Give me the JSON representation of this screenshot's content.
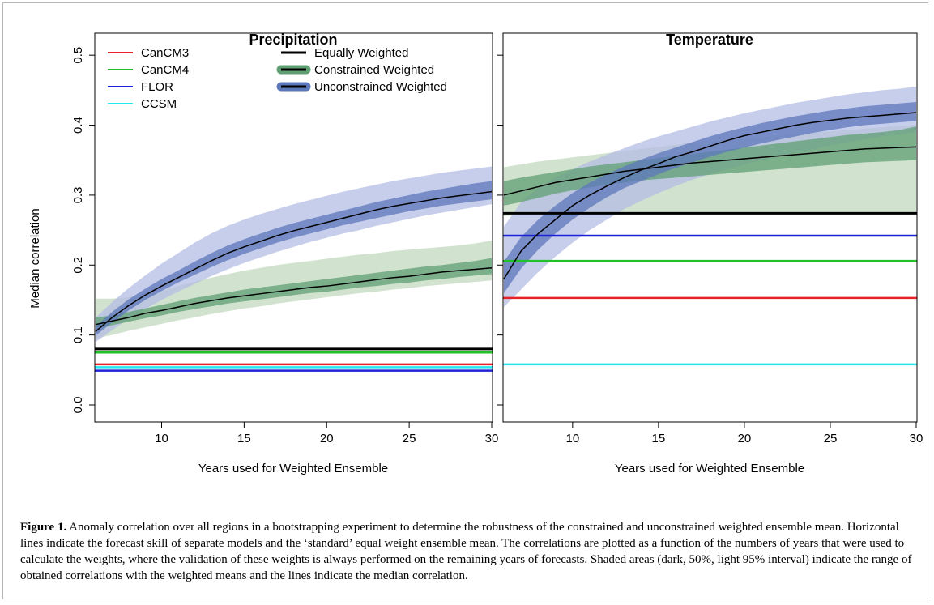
{
  "caption": {
    "label": "Figure 1.",
    "text": "Anomaly correlation over all regions in a bootstrapping experiment to determine the robustness of the constrained and unconstrained weighted ensemble mean. Horizontal lines indicate the forecast skill of separate models and the ‘standard’ equal weight ensemble mean. The correlations are plotted as a function of the numbers of years that were used to calculate the weights, where the validation of these weights is always performed on the remaining years of forecasts. Shaded areas (dark, 50%, light 95% interval) indicate the range of obtained correlations with the weighted means and the lines indicate the median correlation."
  },
  "colors": {
    "CanCM3": "#e8202a",
    "CanCM4": "#22c02a",
    "FLOR": "#1f22d6",
    "CCSM": "#22e8f0",
    "equal": "#000000",
    "constrained_light": "#c2d8bd",
    "constrained_dark": "#5f9f73",
    "unconstrained_light": "#b4bde4",
    "unconstrained_dark": "#5d77bb"
  },
  "chart_data": [
    {
      "type": "line",
      "title": "Precipitation",
      "xlabel": "Years used for Weighted Ensemble",
      "ylabel": "Median correlation",
      "xlim": [
        6,
        30
      ],
      "ylim": [
        0,
        0.55
      ],
      "xticks": [
        "10",
        "15",
        "20",
        "25",
        "30"
      ],
      "yticks": [
        "0.0",
        "0.1",
        "0.2",
        "0.3",
        "0.4",
        "0.5"
      ],
      "legend": {
        "placement": "top-left",
        "col1": [
          "CanCM3",
          "CanCM4",
          "FLOR",
          "CCSM"
        ],
        "col2": [
          "Equally Weighted",
          "Constrained Weighted",
          "Unconstrained Weighted"
        ]
      },
      "hlines": [
        {
          "name": "CanCM3",
          "value": 0.058
        },
        {
          "name": "CanCM4",
          "value": 0.075
        },
        {
          "name": "FLOR",
          "value": 0.049
        },
        {
          "name": "CCSM",
          "value": 0.054
        },
        {
          "name": "Equally Weighted",
          "value": 0.08
        }
      ],
      "x": [
        6,
        7,
        8,
        9,
        10,
        11,
        12,
        13,
        14,
        15,
        16,
        17,
        18,
        19,
        20,
        21,
        22,
        23,
        24,
        25,
        26,
        27,
        28,
        29,
        30
      ],
      "series": [
        {
          "name": "Constrained Weighted",
          "median": [
            0.115,
            0.12,
            0.125,
            0.131,
            0.135,
            0.14,
            0.145,
            0.149,
            0.153,
            0.156,
            0.159,
            0.162,
            0.165,
            0.168,
            0.17,
            0.173,
            0.176,
            0.179,
            0.182,
            0.184,
            0.187,
            0.19,
            0.192,
            0.194,
            0.196
          ],
          "p25": [
            0.108,
            0.114,
            0.119,
            0.124,
            0.128,
            0.133,
            0.137,
            0.141,
            0.145,
            0.148,
            0.151,
            0.154,
            0.157,
            0.16,
            0.162,
            0.165,
            0.168,
            0.17,
            0.173,
            0.175,
            0.178,
            0.18,
            0.183,
            0.185,
            0.187
          ],
          "p75": [
            0.125,
            0.128,
            0.133,
            0.138,
            0.143,
            0.148,
            0.153,
            0.157,
            0.161,
            0.165,
            0.168,
            0.171,
            0.174,
            0.177,
            0.18,
            0.183,
            0.186,
            0.189,
            0.192,
            0.195,
            0.198,
            0.2,
            0.203,
            0.206,
            0.21
          ],
          "p025": [
            0.095,
            0.1,
            0.106,
            0.111,
            0.116,
            0.121,
            0.125,
            0.13,
            0.134,
            0.138,
            0.141,
            0.145,
            0.148,
            0.151,
            0.154,
            0.157,
            0.16,
            0.162,
            0.165,
            0.167,
            0.17,
            0.172,
            0.174,
            0.176,
            0.178
          ],
          "p975": [
            0.152,
            0.152,
            0.154,
            0.158,
            0.163,
            0.17,
            0.176,
            0.182,
            0.187,
            0.192,
            0.196,
            0.2,
            0.203,
            0.206,
            0.209,
            0.212,
            0.215,
            0.217,
            0.22,
            0.222,
            0.224,
            0.226,
            0.228,
            0.231,
            0.235
          ]
        },
        {
          "name": "Unconstrained Weighted",
          "median": [
            0.105,
            0.125,
            0.142,
            0.157,
            0.17,
            0.182,
            0.194,
            0.206,
            0.217,
            0.226,
            0.234,
            0.242,
            0.249,
            0.255,
            0.261,
            0.267,
            0.273,
            0.279,
            0.284,
            0.288,
            0.292,
            0.296,
            0.299,
            0.302,
            0.305
          ],
          "p25": [
            0.099,
            0.118,
            0.135,
            0.15,
            0.163,
            0.175,
            0.186,
            0.197,
            0.207,
            0.216,
            0.224,
            0.232,
            0.239,
            0.245,
            0.251,
            0.257,
            0.262,
            0.267,
            0.272,
            0.277,
            0.281,
            0.285,
            0.288,
            0.291,
            0.294
          ],
          "p75": [
            0.112,
            0.133,
            0.151,
            0.166,
            0.18,
            0.192,
            0.205,
            0.217,
            0.228,
            0.237,
            0.245,
            0.253,
            0.26,
            0.266,
            0.272,
            0.278,
            0.284,
            0.29,
            0.295,
            0.3,
            0.305,
            0.309,
            0.313,
            0.317,
            0.32
          ],
          "p025": [
            0.09,
            0.107,
            0.123,
            0.137,
            0.15,
            0.162,
            0.173,
            0.184,
            0.194,
            0.203,
            0.211,
            0.219,
            0.226,
            0.233,
            0.239,
            0.245,
            0.25,
            0.256,
            0.261,
            0.266,
            0.271,
            0.275,
            0.279,
            0.283,
            0.287
          ],
          "p975": [
            0.125,
            0.147,
            0.167,
            0.185,
            0.202,
            0.217,
            0.232,
            0.245,
            0.256,
            0.265,
            0.273,
            0.28,
            0.287,
            0.293,
            0.299,
            0.305,
            0.31,
            0.315,
            0.32,
            0.324,
            0.328,
            0.332,
            0.335,
            0.338,
            0.341
          ]
        }
      ]
    },
    {
      "type": "line",
      "title": "Temperature",
      "xlabel": "Years used for Weighted Ensemble",
      "ylabel": "",
      "xlim": [
        6,
        30
      ],
      "ylim": [
        0,
        0.55
      ],
      "xticks": [
        "10",
        "15",
        "20",
        "25",
        "30"
      ],
      "hlines": [
        {
          "name": "CanCM3",
          "value": 0.153
        },
        {
          "name": "CanCM4",
          "value": 0.206
        },
        {
          "name": "FLOR",
          "value": 0.242
        },
        {
          "name": "CCSM",
          "value": 0.058
        },
        {
          "name": "Equally Weighted",
          "value": 0.274
        }
      ],
      "x": [
        6,
        7,
        8,
        9,
        10,
        11,
        12,
        13,
        14,
        15,
        16,
        17,
        18,
        19,
        20,
        21,
        22,
        23,
        24,
        25,
        26,
        27,
        28,
        29,
        30
      ],
      "series": [
        {
          "name": "Constrained Weighted",
          "median": [
            0.3,
            0.306,
            0.312,
            0.318,
            0.322,
            0.326,
            0.33,
            0.334,
            0.337,
            0.34,
            0.343,
            0.346,
            0.348,
            0.35,
            0.352,
            0.354,
            0.356,
            0.358,
            0.36,
            0.362,
            0.364,
            0.366,
            0.367,
            0.368,
            0.369
          ],
          "p25": [
            0.285,
            0.29,
            0.296,
            0.302,
            0.307,
            0.311,
            0.315,
            0.318,
            0.321,
            0.323,
            0.325,
            0.327,
            0.329,
            0.331,
            0.333,
            0.335,
            0.337,
            0.339,
            0.341,
            0.343,
            0.345,
            0.347,
            0.348,
            0.349,
            0.35
          ],
          "p75": [
            0.32,
            0.325,
            0.329,
            0.333,
            0.337,
            0.341,
            0.344,
            0.347,
            0.35,
            0.353,
            0.356,
            0.359,
            0.362,
            0.365,
            0.368,
            0.371,
            0.374,
            0.377,
            0.38,
            0.383,
            0.386,
            0.388,
            0.39,
            0.393,
            0.398
          ],
          "p025": [
            0.27,
            0.272,
            0.272,
            0.272,
            0.272,
            0.272,
            0.272,
            0.272,
            0.272,
            0.272,
            0.272,
            0.272,
            0.272,
            0.272,
            0.272,
            0.272,
            0.272,
            0.272,
            0.272,
            0.272,
            0.272,
            0.272,
            0.272,
            0.272,
            0.272
          ],
          "p975": [
            0.34,
            0.344,
            0.348,
            0.351,
            0.354,
            0.357,
            0.36,
            0.363,
            0.366,
            0.369,
            0.372,
            0.375,
            0.377,
            0.379,
            0.381,
            0.383,
            0.385,
            0.387,
            0.389,
            0.391,
            0.393,
            0.395,
            0.397,
            0.399,
            0.4
          ]
        },
        {
          "name": "Unconstrained Weighted",
          "median": [
            0.18,
            0.22,
            0.245,
            0.265,
            0.285,
            0.3,
            0.313,
            0.325,
            0.336,
            0.345,
            0.355,
            0.362,
            0.37,
            0.378,
            0.385,
            0.39,
            0.395,
            0.4,
            0.404,
            0.407,
            0.41,
            0.412,
            0.414,
            0.416,
            0.418
          ],
          "p25": [
            0.16,
            0.195,
            0.222,
            0.245,
            0.265,
            0.282,
            0.297,
            0.31,
            0.32,
            0.33,
            0.339,
            0.347,
            0.355,
            0.362,
            0.368,
            0.374,
            0.379,
            0.384,
            0.389,
            0.393,
            0.397,
            0.4,
            0.402,
            0.404,
            0.406
          ],
          "p75": [
            0.205,
            0.24,
            0.265,
            0.285,
            0.303,
            0.318,
            0.33,
            0.341,
            0.351,
            0.36,
            0.368,
            0.376,
            0.384,
            0.391,
            0.397,
            0.403,
            0.408,
            0.413,
            0.417,
            0.421,
            0.424,
            0.427,
            0.429,
            0.431,
            0.433
          ],
          "p025": [
            0.14,
            0.165,
            0.19,
            0.212,
            0.232,
            0.25,
            0.265,
            0.28,
            0.292,
            0.303,
            0.313,
            0.322,
            0.33,
            0.337,
            0.344,
            0.35,
            0.356,
            0.361,
            0.366,
            0.371,
            0.376,
            0.38,
            0.384,
            0.387,
            0.39
          ],
          "p975": [
            0.255,
            0.29,
            0.31,
            0.325,
            0.337,
            0.348,
            0.358,
            0.367,
            0.376,
            0.384,
            0.391,
            0.398,
            0.405,
            0.411,
            0.417,
            0.422,
            0.427,
            0.432,
            0.436,
            0.44,
            0.444,
            0.447,
            0.45,
            0.452,
            0.455
          ]
        }
      ]
    }
  ]
}
